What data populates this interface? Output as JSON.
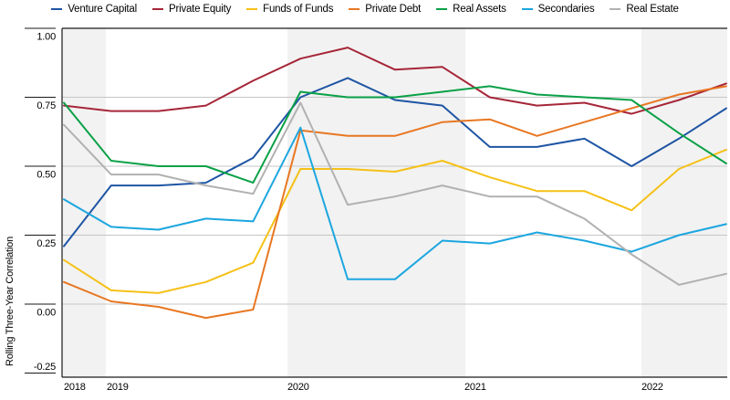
{
  "chart_data": {
    "type": "line",
    "title": "",
    "ylabel": "Rolling Three-Year Correlation",
    "xlabel": "",
    "categories": [
      "2018 Q4",
      "2019 Q1",
      "2019 Q2",
      "2019 Q3",
      "2019 Q4",
      "2020 Q1",
      "2020 Q2",
      "2020 Q3",
      "2020 Q4",
      "2021 Q1",
      "2021 Q2",
      "2021 Q3",
      "2021 Q4",
      "2022 Q1",
      "2022 Q2"
    ],
    "xticks": [
      "2018",
      "2019",
      "2020",
      "2021",
      "2022"
    ],
    "ytick_labels": [
      "1.00",
      "0.75",
      "0.50",
      "0.25",
      "0.00",
      "-0.25"
    ],
    "yticks": [
      1.0,
      0.75,
      0.5,
      0.25,
      0.0,
      -0.25
    ],
    "ylim": [
      -0.27,
      1.0
    ],
    "grid": "horizontal",
    "legend_position": "top",
    "shaded_years": [
      "2018",
      "2020",
      "2022"
    ],
    "band_color": "#f2f2f2",
    "gridline_color": "#c6c6c6",
    "axis_color": "#1a1a1a",
    "series": [
      {
        "name": "Venture Capital",
        "color": "#1f55a4",
        "values": [
          0.21,
          0.43,
          0.43,
          0.44,
          0.53,
          0.75,
          0.82,
          0.74,
          0.72,
          0.57,
          0.57,
          0.6,
          0.5,
          0.6,
          0.71
        ]
      },
      {
        "name": "Private Equity",
        "color": "#a62639",
        "values": [
          0.72,
          0.7,
          0.7,
          0.72,
          0.81,
          0.89,
          0.93,
          0.85,
          0.86,
          0.75,
          0.72,
          0.73,
          0.69,
          0.74,
          0.8
        ]
      },
      {
        "name": "Funds of Funds",
        "color": "#f5c117",
        "values": [
          0.16,
          0.05,
          0.04,
          0.08,
          0.15,
          0.49,
          0.49,
          0.48,
          0.52,
          0.46,
          0.41,
          0.41,
          0.34,
          0.49,
          0.56
        ]
      },
      {
        "name": "Private Debt",
        "color": "#e87722",
        "values": [
          0.08,
          0.01,
          -0.01,
          -0.05,
          -0.02,
          0.63,
          0.61,
          0.61,
          0.66,
          0.67,
          0.61,
          0.66,
          0.71,
          0.76,
          0.79
        ]
      },
      {
        "name": "Real Assets",
        "color": "#0aa147",
        "values": [
          0.73,
          0.52,
          0.5,
          0.5,
          0.44,
          0.77,
          0.75,
          0.75,
          0.77,
          0.79,
          0.76,
          0.75,
          0.74,
          0.62,
          0.51
        ]
      },
      {
        "name": "Secondaries",
        "color": "#1ca6df",
        "values": [
          0.38,
          0.28,
          0.27,
          0.31,
          0.3,
          0.64,
          0.09,
          0.09,
          0.23,
          0.22,
          0.26,
          0.23,
          0.19,
          0.25,
          0.29
        ]
      },
      {
        "name": "Real Estate",
        "color": "#b1b1b1",
        "values": [
          0.65,
          0.47,
          0.47,
          0.43,
          0.4,
          0.73,
          0.36,
          0.39,
          0.43,
          0.39,
          0.39,
          0.31,
          0.18,
          0.07,
          0.11
        ]
      }
    ]
  }
}
